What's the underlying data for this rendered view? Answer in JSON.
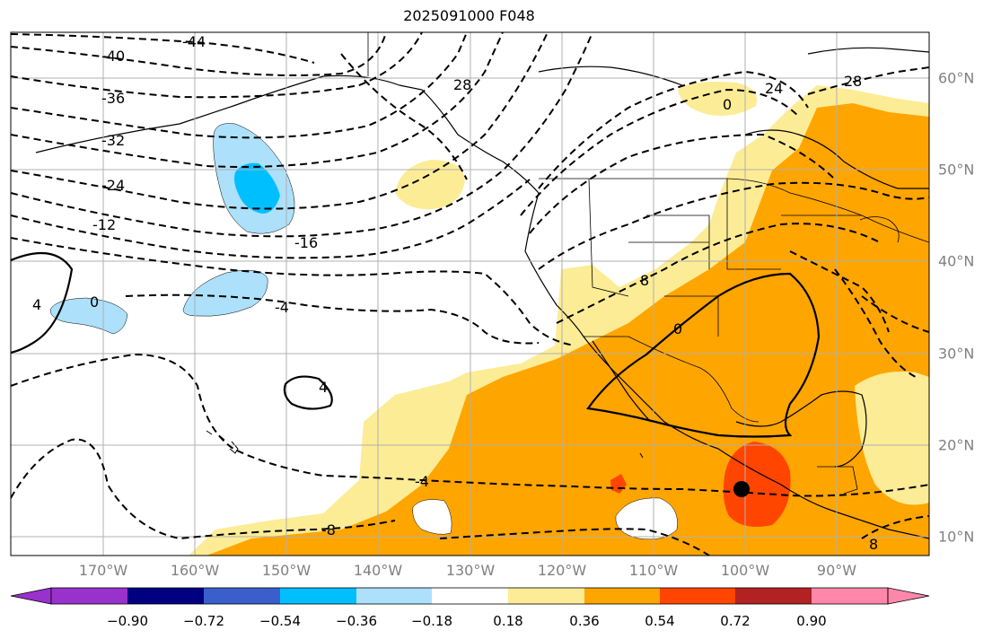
{
  "title": "2025091000 F048",
  "map": {
    "lon_labels": [
      "170°W",
      "160°W",
      "150°W",
      "140°W",
      "130°W",
      "120°W",
      "110°W",
      "100°W",
      "90°W"
    ],
    "lat_labels": [
      "60°N",
      "50°N",
      "40°N",
      "30°N",
      "20°N",
      "10°N"
    ],
    "contour_labels": [
      "-44",
      "-40",
      "-36",
      "-32",
      "-24",
      "-12",
      "-16",
      "-4",
      "0",
      "4",
      "28",
      "24",
      "28",
      "8",
      "0",
      "4",
      "-4",
      "-8",
      "8",
      "0"
    ],
    "colors": {
      "neg_030": "#ade0fa",
      "neg_045": "#00bfff",
      "pos_018": "#fdec96",
      "pos_036": "#ffa500",
      "pos_054": "#ff4500",
      "ocean": "#ffffff",
      "grid": "#b0b0b0"
    }
  },
  "colorbar": {
    "ticks": [
      "−0.90",
      "−0.72",
      "−0.54",
      "−0.36",
      "−0.18",
      "0.18",
      "0.36",
      "0.54",
      "0.72",
      "0.90"
    ],
    "colors": [
      "#9932cc",
      "#000080",
      "#3a5fcd",
      "#00bfff",
      "#ade0fa",
      "#ffffff",
      "#fdec96",
      "#ffa500",
      "#ff4500",
      "#b22222",
      "#ff88aa"
    ]
  }
}
